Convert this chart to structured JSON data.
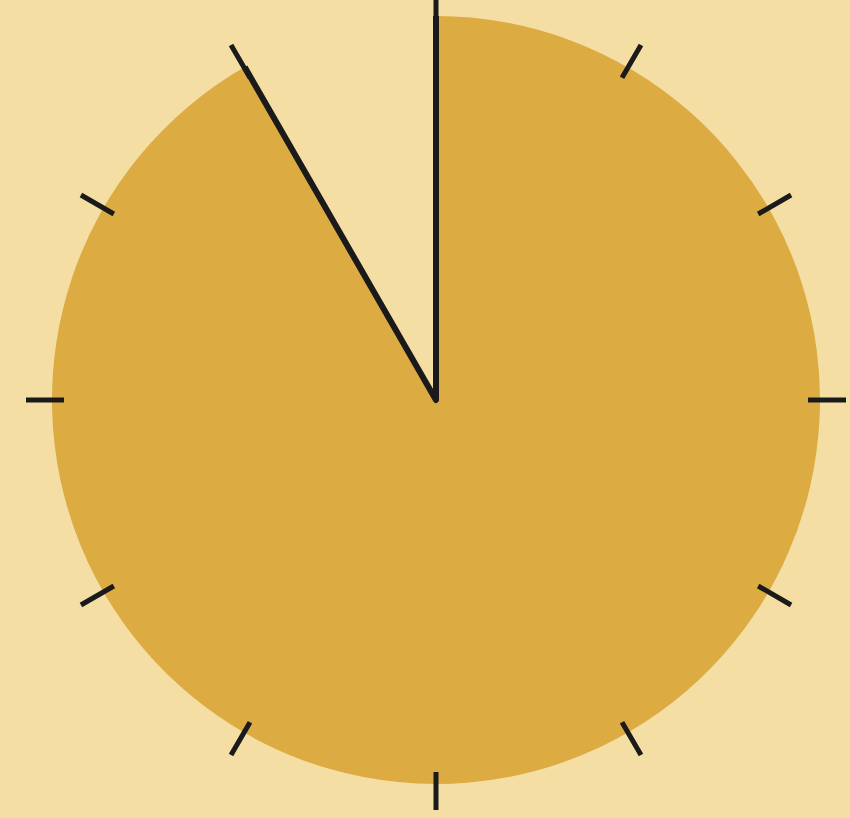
{
  "chart_data": {
    "type": "pie",
    "categories": [
      null,
      null
    ],
    "values": [
      91.7,
      8.3
    ],
    "colors": [
      "#dcab42",
      "#f4dea4"
    ]
  }
}
